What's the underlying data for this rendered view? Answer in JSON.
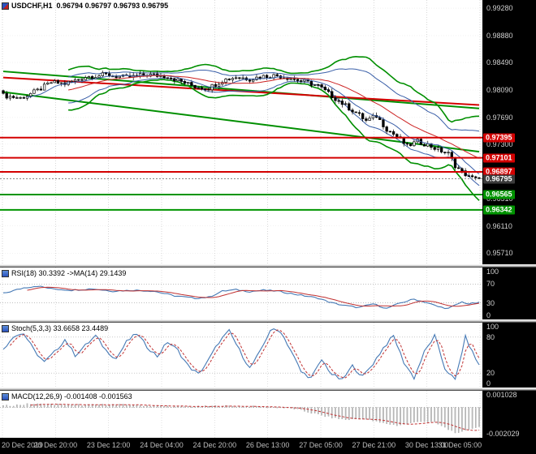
{
  "header": {
    "symbol": "USDCHF,H1",
    "ohlc": "0.96794 0.96797 0.96793 0.96795"
  },
  "panels": {
    "rsi": {
      "label": "RSI(18) 30.3392 ->MA(14) 29.1439",
      "ticks": [
        100,
        70,
        30,
        0
      ],
      "range": [
        0,
        100
      ]
    },
    "stoch": {
      "label": "Stoch(5,3,3) 33.6658 23.4489",
      "ticks": [
        100,
        80,
        20,
        0
      ],
      "range": [
        0,
        100
      ]
    },
    "macd": {
      "label": "MACD(12,26,9) -0.001408 -0.001563",
      "ticks": [
        0.001028,
        -0.002029
      ],
      "tick_labels": [
        "0.001028",
        "-0.002029"
      ],
      "range": [
        -0.002029,
        0.001028
      ]
    }
  },
  "price_axis": {
    "ticks": [
      "0.99280",
      "0.98880",
      "0.98490",
      "0.98090",
      "0.97690",
      "0.97300",
      "0.96900",
      "0.96510",
      "0.96110",
      "0.95710"
    ],
    "badges": [
      {
        "label": "0.97395",
        "price": 0.97395,
        "bg": "#d40000"
      },
      {
        "label": "0.97101",
        "price": 0.97101,
        "bg": "#d40000"
      },
      {
        "label": "0.96897",
        "price": 0.96897,
        "bg": "#d40000"
      },
      {
        "label": "0.96795",
        "price": 0.96795,
        "bg": "#3c3c3c"
      },
      {
        "label": "0.96565",
        "price": 0.96565,
        "bg": "#009400"
      },
      {
        "label": "0.96342",
        "price": 0.96342,
        "bg": "#009400"
      }
    ]
  },
  "time_axis": {
    "labels": [
      "20 Dec 2019",
      "20 Dec 20:00",
      "23 Dec 12:00",
      "24 Dec 04:00",
      "24 Dec 20:00",
      "26 Dec 13:00",
      "27 Dec 05:00",
      "27 Dec 21:00",
      "30 Dec 13:00",
      "31 Dec 05:00"
    ]
  },
  "colors": {
    "resistance": "#d40000",
    "support": "#009400",
    "trend_green": "#008f00",
    "trend_red": "#d40000",
    "bollinger": "#3a5fa8",
    "fast_ma_red": "#cc2222",
    "indicator_blue": "#4579b5",
    "indicator_red": "#c03030",
    "histogram": "#bdbdbd",
    "grid": "#c6c6c6",
    "current_price_line": "#777777"
  },
  "chart_data": {
    "type": "candlestick",
    "symbol": "USDCHF",
    "timeframe": "H1",
    "bars": 140,
    "price_range": [
      0.9555,
      0.994
    ],
    "close_waypoints": [
      [
        0,
        0.9801
      ],
      [
        5,
        0.9797
      ],
      [
        10,
        0.9808
      ],
      [
        14,
        0.982
      ],
      [
        18,
        0.9818
      ],
      [
        24,
        0.9828
      ],
      [
        30,
        0.9831
      ],
      [
        36,
        0.9827
      ],
      [
        42,
        0.9831
      ],
      [
        48,
        0.9829
      ],
      [
        52,
        0.9821
      ],
      [
        56,
        0.9814
      ],
      [
        60,
        0.9812
      ],
      [
        64,
        0.9823
      ],
      [
        68,
        0.9828
      ],
      [
        72,
        0.9825
      ],
      [
        76,
        0.9829
      ],
      [
        80,
        0.983
      ],
      [
        84,
        0.9826
      ],
      [
        88,
        0.9821
      ],
      [
        92,
        0.9815
      ],
      [
        96,
        0.98
      ],
      [
        100,
        0.9786
      ],
      [
        103,
        0.9776
      ],
      [
        106,
        0.9764
      ],
      [
        109,
        0.9771
      ],
      [
        112,
        0.9752
      ],
      [
        115,
        0.9741
      ],
      [
        118,
        0.9727
      ],
      [
        121,
        0.9734
      ],
      [
        124,
        0.9729
      ],
      [
        127,
        0.9722
      ],
      [
        130,
        0.9716
      ],
      [
        132,
        0.9699
      ],
      [
        134,
        0.9689
      ],
      [
        136,
        0.9684
      ],
      [
        138,
        0.9681
      ],
      [
        139,
        0.968
      ]
    ],
    "levels": {
      "resistance": [
        0.97395,
        0.97101,
        0.96897
      ],
      "support": [
        0.96565,
        0.96342
      ],
      "current": 0.96795
    },
    "trendlines": [
      {
        "from": [
          0,
          0.9806
        ],
        "to": [
          139,
          0.9719
        ],
        "color": "#008f00",
        "width": 2
      },
      {
        "from": [
          0,
          0.9836
        ],
        "to": [
          139,
          0.9782
        ],
        "color": "#008f00",
        "width": 2
      },
      {
        "from": [
          0,
          0.9827
        ],
        "to": [
          139,
          0.9787
        ],
        "color": "#d40000",
        "width": 2
      }
    ],
    "indicators": {
      "rsi": {
        "last": 30.3392,
        "ma_last": 29.1439,
        "waypoints": [
          [
            0,
            50
          ],
          [
            6,
            62
          ],
          [
            10,
            66
          ],
          [
            14,
            60
          ],
          [
            20,
            57
          ],
          [
            26,
            60
          ],
          [
            32,
            55
          ],
          [
            38,
            57
          ],
          [
            44,
            55
          ],
          [
            50,
            45
          ],
          [
            56,
            40
          ],
          [
            60,
            42
          ],
          [
            64,
            55
          ],
          [
            68,
            58
          ],
          [
            72,
            54
          ],
          [
            76,
            57
          ],
          [
            80,
            55
          ],
          [
            84,
            50
          ],
          [
            88,
            45
          ],
          [
            92,
            40
          ],
          [
            96,
            30
          ],
          [
            100,
            24
          ],
          [
            104,
            20
          ],
          [
            108,
            28
          ],
          [
            112,
            18
          ],
          [
            116,
            30
          ],
          [
            120,
            38
          ],
          [
            124,
            30
          ],
          [
            127,
            22
          ],
          [
            130,
            18
          ],
          [
            132,
            25
          ],
          [
            134,
            32
          ],
          [
            136,
            28
          ],
          [
            139,
            30.3
          ]
        ]
      },
      "stoch": {
        "last_k": 33.6658,
        "last_d": 23.4489,
        "waypoints": [
          [
            0,
            60
          ],
          [
            3,
            82
          ],
          [
            6,
            86
          ],
          [
            9,
            58
          ],
          [
            12,
            38
          ],
          [
            15,
            55
          ],
          [
            18,
            76
          ],
          [
            21,
            50
          ],
          [
            24,
            66
          ],
          [
            27,
            82
          ],
          [
            30,
            58
          ],
          [
            33,
            44
          ],
          [
            36,
            72
          ],
          [
            39,
            86
          ],
          [
            42,
            64
          ],
          [
            45,
            48
          ],
          [
            48,
            72
          ],
          [
            51,
            58
          ],
          [
            54,
            32
          ],
          [
            57,
            18
          ],
          [
            60,
            42
          ],
          [
            63,
            72
          ],
          [
            66,
            90
          ],
          [
            69,
            58
          ],
          [
            72,
            28
          ],
          [
            75,
            55
          ],
          [
            78,
            92
          ],
          [
            81,
            90
          ],
          [
            84,
            58
          ],
          [
            87,
            22
          ],
          [
            90,
            12
          ],
          [
            93,
            42
          ],
          [
            96,
            18
          ],
          [
            99,
            8
          ],
          [
            102,
            32
          ],
          [
            105,
            14
          ],
          [
            108,
            36
          ],
          [
            111,
            62
          ],
          [
            114,
            82
          ],
          [
            117,
            38
          ],
          [
            120,
            12
          ],
          [
            123,
            55
          ],
          [
            126,
            82
          ],
          [
            129,
            28
          ],
          [
            132,
            8
          ],
          [
            135,
            80
          ],
          [
            137,
            55
          ],
          [
            139,
            33
          ]
        ]
      },
      "macd": {
        "last": -0.001408,
        "signal_last": -0.001563,
        "waypoints": [
          [
            0,
            0.0001
          ],
          [
            8,
            0.00024
          ],
          [
            16,
            0.0002
          ],
          [
            24,
            0.00016
          ],
          [
            32,
            0.0002
          ],
          [
            40,
            0.00014
          ],
          [
            48,
            8e-05
          ],
          [
            56,
            4e-05
          ],
          [
            64,
            0.0001
          ],
          [
            72,
            6e-05
          ],
          [
            80,
            0.0
          ],
          [
            85,
            -0.0001
          ],
          [
            90,
            -0.0004
          ],
          [
            95,
            -0.0007
          ],
          [
            100,
            -0.0009
          ],
          [
            105,
            -0.0008
          ],
          [
            110,
            -0.0011
          ],
          [
            115,
            -0.0013
          ],
          [
            118,
            -0.0012
          ],
          [
            122,
            -0.001
          ],
          [
            126,
            -0.0011
          ],
          [
            130,
            -0.0016
          ],
          [
            133,
            -0.0019
          ],
          [
            136,
            -0.0016
          ],
          [
            139,
            -0.00141
          ]
        ]
      }
    }
  }
}
